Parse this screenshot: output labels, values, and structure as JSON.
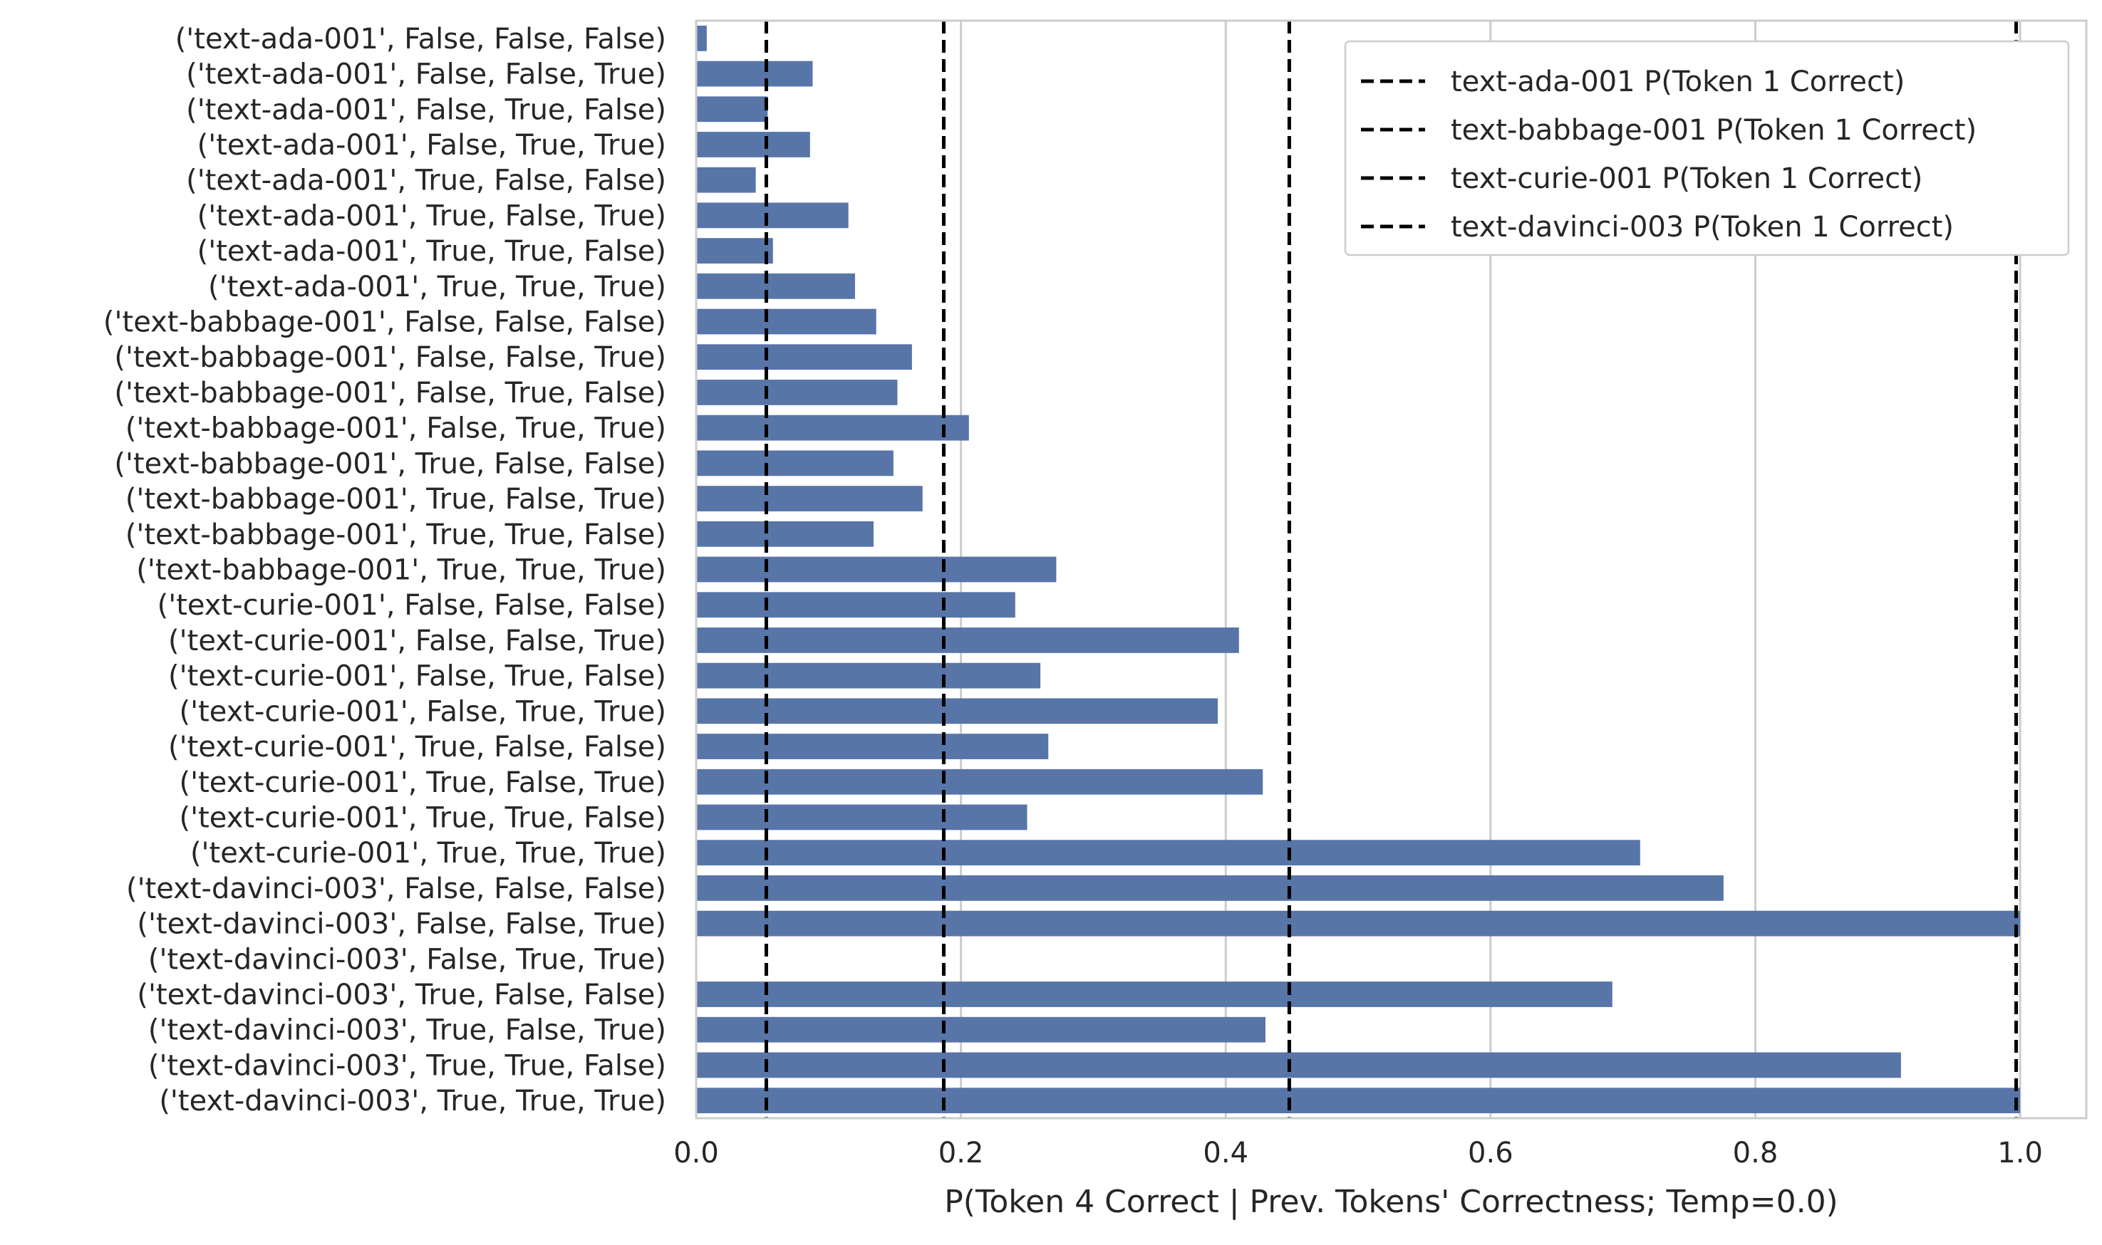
{
  "chart_data": {
    "type": "bar",
    "orientation": "horizontal",
    "title": "",
    "xlabel": "P(Token 4 Correct | Prev. Tokens' Correctness; Temp=0.0)",
    "ylabel": "",
    "xlim": [
      0.0,
      1.05
    ],
    "xticks": [
      "0.0",
      "0.2",
      "0.4",
      "0.6",
      "0.8",
      "1.0"
    ],
    "grid": true,
    "bar_color": "#5875a8",
    "categories": [
      "('text-ada-001', False, False, False)",
      "('text-ada-001', False, False, True)",
      "('text-ada-001', False, True, False)",
      "('text-ada-001', False, True, True)",
      "('text-ada-001', True, False, False)",
      "('text-ada-001', True, False, True)",
      "('text-ada-001', True, True, False)",
      "('text-ada-001', True, True, True)",
      "('text-babbage-001', False, False, False)",
      "('text-babbage-001', False, False, True)",
      "('text-babbage-001', False, True, False)",
      "('text-babbage-001', False, True, True)",
      "('text-babbage-001', True, False, False)",
      "('text-babbage-001', True, False, True)",
      "('text-babbage-001', True, True, False)",
      "('text-babbage-001', True, True, True)",
      "('text-curie-001', False, False, False)",
      "('text-curie-001', False, False, True)",
      "('text-curie-001', False, True, False)",
      "('text-curie-001', False, True, True)",
      "('text-curie-001', True, False, False)",
      "('text-curie-001', True, False, True)",
      "('text-curie-001', True, True, False)",
      "('text-curie-001', True, True, True)",
      "('text-davinci-003', False, False, False)",
      "('text-davinci-003', False, False, True)",
      "('text-davinci-003', False, True, True)",
      "('text-davinci-003', True, False, False)",
      "('text-davinci-003', True, False, True)",
      "('text-davinci-003', True, True, False)",
      "('text-davinci-003', True, True, True)"
    ],
    "values": [
      0.008,
      0.088,
      0.054,
      0.086,
      0.045,
      0.115,
      0.058,
      0.12,
      0.136,
      0.163,
      0.152,
      0.206,
      0.149,
      0.171,
      0.134,
      0.272,
      0.241,
      0.41,
      0.26,
      0.394,
      0.266,
      0.428,
      0.25,
      0.713,
      0.776,
      1.0,
      0.0,
      0.692,
      0.43,
      0.91,
      1.0
    ],
    "reference_lines": [
      {
        "label": "text-ada-001 P(Token 1 Correct)",
        "x": 0.053
      },
      {
        "label": "text-babbage-001 P(Token 1 Correct)",
        "x": 0.187
      },
      {
        "label": "text-curie-001 P(Token 1 Correct)",
        "x": 0.448
      },
      {
        "label": "text-davinci-003 P(Token 1 Correct)",
        "x": 0.997
      }
    ],
    "legend_position": "upper right"
  }
}
